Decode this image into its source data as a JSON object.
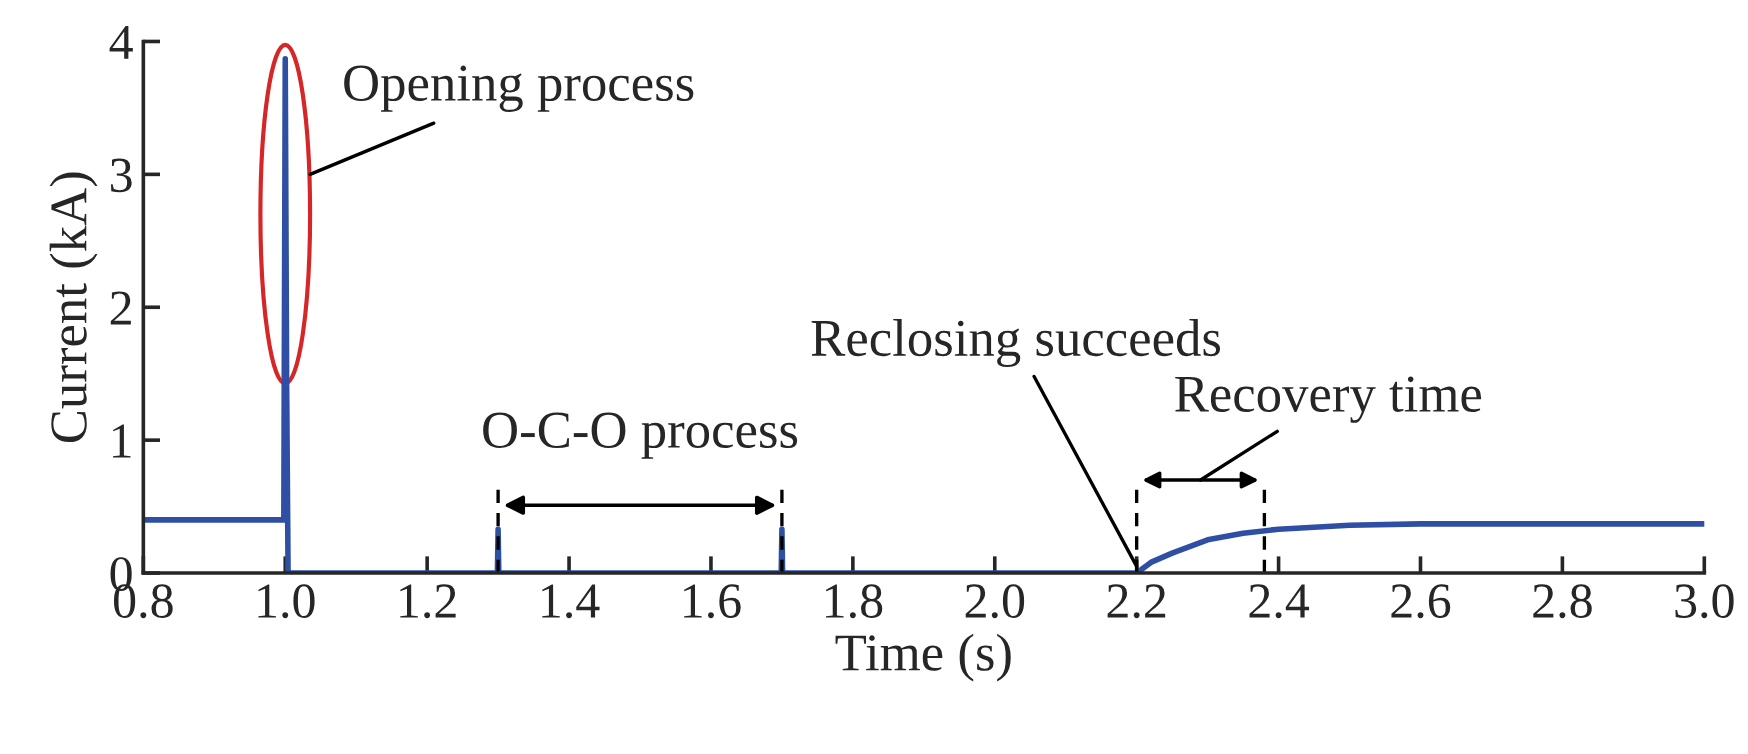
{
  "chart_data": {
    "type": "line",
    "xlabel": "Time (s)",
    "ylabel": "Current (kA)",
    "xlim": [
      0.8,
      3.0
    ],
    "xticks": [
      {
        "value": 0.8,
        "label": "0.8"
      },
      {
        "value": 1.0,
        "label": "1.0"
      },
      {
        "value": 1.2,
        "label": "1.2"
      },
      {
        "value": 1.4,
        "label": "1.4"
      },
      {
        "value": 1.6,
        "label": "1.6"
      },
      {
        "value": 1.8,
        "label": "1.8"
      },
      {
        "value": 2.0,
        "label": "2.0"
      },
      {
        "value": 2.2,
        "label": "2.2"
      },
      {
        "value": 2.4,
        "label": "2.4"
      },
      {
        "value": 2.6,
        "label": "2.6"
      },
      {
        "value": 2.8,
        "label": "2.8"
      },
      {
        "value": 3.0,
        "label": "3.0"
      }
    ],
    "ylim": [
      0,
      4
    ],
    "yticks": [
      0,
      1,
      2,
      3,
      4
    ],
    "grid": false,
    "legend": false,
    "marker": "none",
    "line_style": "solid",
    "series": [
      {
        "color": "#2e4fa3",
        "x": [
          0.8,
          0.998,
          1.0,
          1.002,
          1.004,
          1.299,
          1.3,
          1.301,
          1.699,
          1.7,
          1.701,
          2.2,
          2.22,
          2.25,
          2.3,
          2.35,
          2.4,
          2.5,
          2.6,
          2.7,
          3.0
        ],
        "values": [
          0.4,
          0.4,
          3.87,
          1.4,
          0.0,
          0.0,
          0.33,
          0.0,
          0.0,
          0.33,
          0.0,
          0.0,
          0.08,
          0.15,
          0.25,
          0.3,
          0.33,
          0.36,
          0.37,
          0.37,
          0.37
        ]
      }
    ],
    "ref_lines": [
      {
        "axis": "x",
        "value": 1.3,
        "line_style": "dashed",
        "color": "#000000"
      },
      {
        "axis": "x",
        "value": 1.7,
        "line_style": "dashed",
        "color": "#000000"
      },
      {
        "axis": "x",
        "value": 2.2,
        "line_style": "dashed",
        "color": "#000000"
      },
      {
        "axis": "x",
        "value": 2.38,
        "line_style": "dashed",
        "color": "#000000"
      }
    ],
    "annotations": [
      {
        "text": "Opening process",
        "x": 1.0,
        "y": 3.87
      },
      "O-C-O process",
      {
        "text": "Reclosing succeeds",
        "x": 2.2,
        "y": 0.05
      },
      "Recovery time"
    ]
  }
}
